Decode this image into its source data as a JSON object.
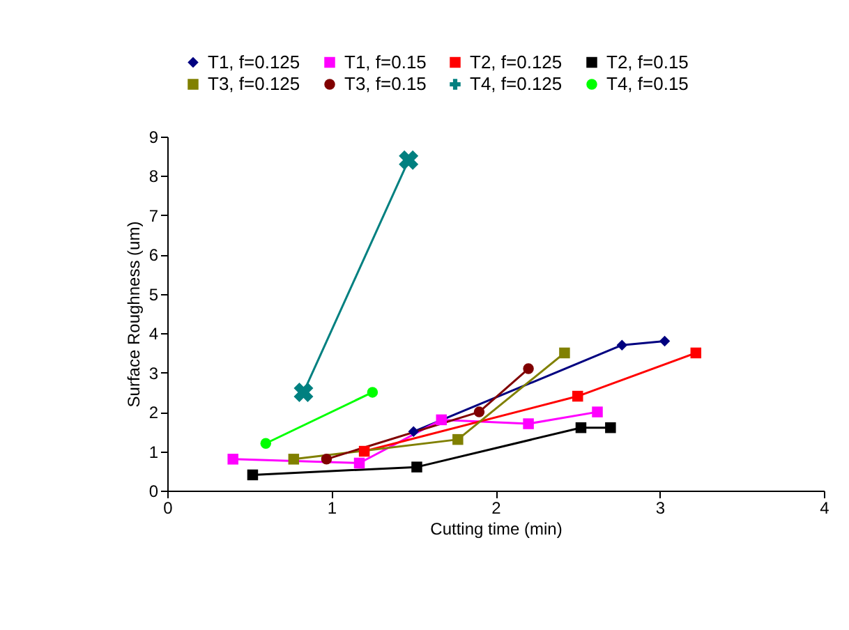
{
  "chart_data": {
    "type": "line",
    "xlabel": "Cutting time (min)",
    "ylabel": "Surface Roughness (um)",
    "xlim": [
      0,
      4
    ],
    "xticks": [
      0,
      1,
      2,
      3,
      4
    ],
    "ylim": [
      0,
      9
    ],
    "yticks": [
      0,
      1,
      2,
      3,
      4,
      5,
      6,
      7,
      8,
      9
    ],
    "grid": false,
    "legend": "top",
    "series": [
      {
        "name": "T1, f=0.125",
        "color": "#000080",
        "marker": "diamond",
        "x": [
          1.5,
          2.77,
          3.03
        ],
        "values": [
          1.5,
          3.7,
          3.8
        ]
      },
      {
        "name": "T1, f=0.15",
        "color": "#ff00ff",
        "marker": "square",
        "x": [
          0.4,
          1.17,
          1.67,
          2.2,
          2.62
        ],
        "values": [
          0.8,
          0.7,
          1.8,
          1.7,
          2.0
        ]
      },
      {
        "name": "T2, f=0.125",
        "color": "#ff0000",
        "marker": "square",
        "x": [
          1.2,
          2.5,
          3.22
        ],
        "values": [
          1.0,
          2.4,
          3.5
        ]
      },
      {
        "name": "T2, f=0.15",
        "color": "#000000",
        "marker": "square",
        "x": [
          0.52,
          1.52,
          2.52,
          2.7
        ],
        "values": [
          0.4,
          0.6,
          1.6,
          1.6
        ]
      },
      {
        "name": "T3, f=0.125",
        "color": "#808000",
        "marker": "square",
        "x": [
          0.77,
          1.77,
          2.42
        ],
        "values": [
          0.8,
          1.3,
          3.5
        ]
      },
      {
        "name": "T3, f=0.15",
        "color": "#800000",
        "marker": "circle",
        "x": [
          0.97,
          1.9,
          2.2
        ],
        "values": [
          0.8,
          2.0,
          3.1
        ]
      },
      {
        "name": "T4, f=0.125",
        "color": "#008080",
        "marker": "cross",
        "x": [
          0.83,
          1.47
        ],
        "values": [
          2.5,
          8.4
        ]
      },
      {
        "name": "T4, f=0.15",
        "color": "#00ff00",
        "marker": "circle",
        "x": [
          0.6,
          1.25
        ],
        "values": [
          1.2,
          2.5
        ]
      }
    ]
  }
}
